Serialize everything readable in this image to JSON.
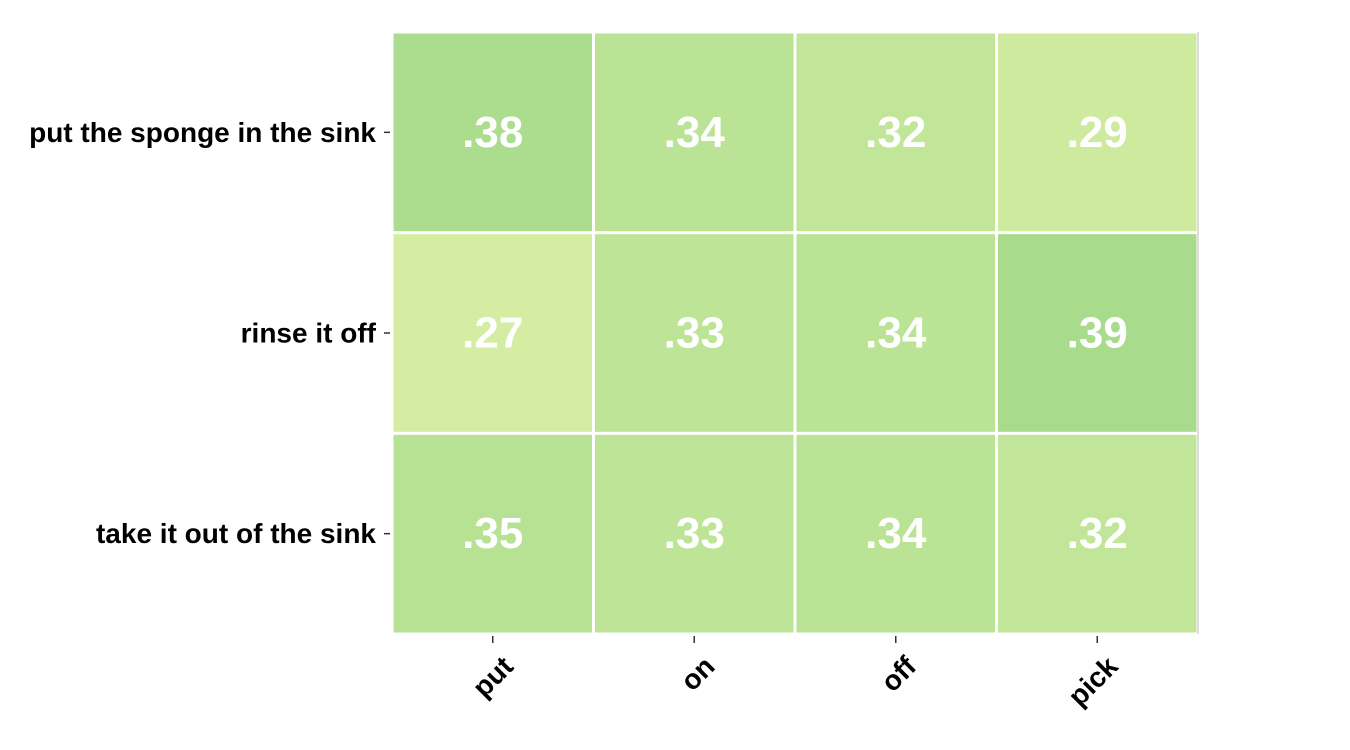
{
  "chart_data": {
    "type": "heatmap",
    "rows": [
      "put the sponge in the sink",
      "rinse it off",
      "take it out of the sink"
    ],
    "columns": [
      "put",
      "on",
      "off",
      "pick"
    ],
    "values": [
      [
        0.38,
        0.34,
        0.32,
        0.29
      ],
      [
        0.27,
        0.33,
        0.34,
        0.39
      ],
      [
        0.35,
        0.33,
        0.34,
        0.32
      ]
    ],
    "cell_labels": [
      [
        ".38",
        ".34",
        ".32",
        ".29"
      ],
      [
        ".27",
        ".33",
        ".34",
        ".39"
      ],
      [
        ".35",
        ".33",
        ".34",
        ".32"
      ]
    ],
    "colormap": {
      "low_color": "#d4eda2",
      "high_color": "#a8db8c",
      "vmin": 0.27,
      "vmax": 0.39
    },
    "grid": false,
    "legend": "none",
    "title": "",
    "xlabel": "",
    "ylabel": ""
  }
}
